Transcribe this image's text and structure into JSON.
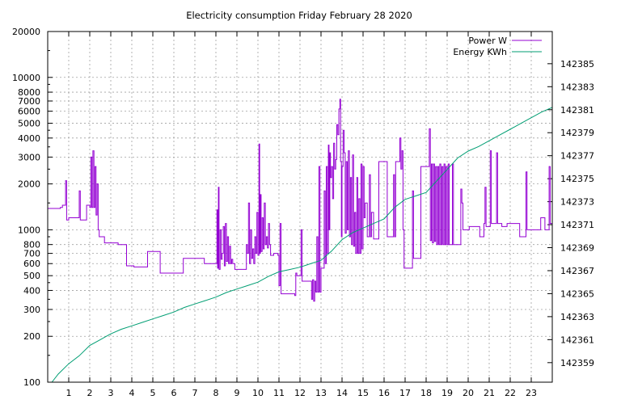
{
  "chart_data": {
    "type": "line",
    "title": "Electricity consumption Friday February 28 2020",
    "xlabel": "",
    "ylabel": "",
    "y2label": "",
    "xlim": [
      0,
      24
    ],
    "ylim": [
      100,
      20000
    ],
    "yscale": "log",
    "y2lim": [
      142357.3,
      142387.8
    ],
    "grid": true,
    "legend_position": "top-right",
    "x_ticks": [
      "1",
      "2",
      "3",
      "4",
      "5",
      "6",
      "7",
      "8",
      "9",
      "10",
      "11",
      "12",
      "13",
      "14",
      "15",
      "16",
      "17",
      "18",
      "19",
      "20",
      "21",
      "22",
      "23"
    ],
    "y_ticks": [
      "20000",
      "10000",
      "8000",
      "7000",
      "6000",
      "5000",
      "4000",
      "3000",
      "2000",
      "1000",
      "800",
      "700",
      "600",
      "500",
      "400",
      "300",
      "200",
      "100"
    ],
    "y2_ticks": [
      "142385",
      "142383",
      "142381",
      "142379",
      "142377",
      "142375",
      "142373",
      "142371",
      "142369",
      "142367",
      "142365",
      "142363",
      "142361",
      "142359"
    ],
    "series": [
      {
        "name": "Power W",
        "axis": "left",
        "color": "#9400d3",
        "points": [
          [
            0,
            1380
          ],
          [
            0.6,
            1400
          ],
          [
            0.7,
            1450
          ],
          [
            0.8,
            1450
          ],
          [
            0.85,
            2100
          ],
          [
            0.9,
            1160
          ],
          [
            1.0,
            1200
          ],
          [
            1.4,
            1200
          ],
          [
            1.5,
            1800
          ],
          [
            1.55,
            1160
          ],
          [
            1.8,
            1160
          ],
          [
            1.85,
            1450
          ],
          [
            2.0,
            1400
          ],
          [
            2.05,
            3000
          ],
          [
            2.1,
            1400
          ],
          [
            2.15,
            3300
          ],
          [
            2.2,
            1400
          ],
          [
            2.25,
            2600
          ],
          [
            2.3,
            1250
          ],
          [
            2.35,
            2000
          ],
          [
            2.4,
            1000
          ],
          [
            2.45,
            900
          ],
          [
            2.7,
            820
          ],
          [
            3.3,
            820
          ],
          [
            3.35,
            800
          ],
          [
            3.7,
            800
          ],
          [
            3.75,
            580
          ],
          [
            4.1,
            570
          ],
          [
            4.7,
            570
          ],
          [
            4.75,
            720
          ],
          [
            5.3,
            720
          ],
          [
            5.35,
            520
          ],
          [
            6.4,
            520
          ],
          [
            6.45,
            650
          ],
          [
            7.4,
            650
          ],
          [
            7.45,
            600
          ],
          [
            8.0,
            600
          ],
          [
            8.05,
            1350
          ],
          [
            8.08,
            560
          ],
          [
            8.12,
            1900
          ],
          [
            8.15,
            550
          ],
          [
            8.2,
            1000
          ],
          [
            8.25,
            640
          ],
          [
            8.3,
            700
          ],
          [
            8.35,
            1050
          ],
          [
            8.4,
            580
          ],
          [
            8.45,
            1100
          ],
          [
            8.5,
            620
          ],
          [
            8.55,
            900
          ],
          [
            8.6,
            600
          ],
          [
            8.65,
            780
          ],
          [
            8.7,
            600
          ],
          [
            8.75,
            640
          ],
          [
            8.8,
            600
          ],
          [
            8.9,
            550
          ],
          [
            9.4,
            550
          ],
          [
            9.45,
            800
          ],
          [
            9.5,
            700
          ],
          [
            9.55,
            1500
          ],
          [
            9.6,
            600
          ],
          [
            9.65,
            1000
          ],
          [
            9.7,
            650
          ],
          [
            9.75,
            750
          ],
          [
            9.8,
            600
          ],
          [
            9.85,
            900
          ],
          [
            9.9,
            700
          ],
          [
            9.95,
            1300
          ],
          [
            10.0,
            680
          ],
          [
            10.05,
            3650
          ],
          [
            10.08,
            700
          ],
          [
            10.12,
            1700
          ],
          [
            10.15,
            720
          ],
          [
            10.2,
            1200
          ],
          [
            10.25,
            750
          ],
          [
            10.3,
            1500
          ],
          [
            10.35,
            800
          ],
          [
            10.4,
            900
          ],
          [
            10.45,
            760
          ],
          [
            10.5,
            1100
          ],
          [
            10.55,
            800
          ],
          [
            10.6,
            680
          ],
          [
            10.7,
            680
          ],
          [
            10.75,
            700
          ],
          [
            10.9,
            700
          ],
          [
            10.95,
            680
          ],
          [
            11.0,
            430
          ],
          [
            11.05,
            1100
          ],
          [
            11.1,
            380
          ],
          [
            11.7,
            380
          ],
          [
            11.75,
            370
          ],
          [
            11.8,
            520
          ],
          [
            11.85,
            500
          ],
          [
            12.0,
            500
          ],
          [
            12.05,
            1000
          ],
          [
            12.1,
            460
          ],
          [
            12.5,
            460
          ],
          [
            12.55,
            350
          ],
          [
            12.6,
            470
          ],
          [
            12.65,
            340
          ],
          [
            12.7,
            460
          ],
          [
            12.75,
            390
          ],
          [
            12.8,
            900
          ],
          [
            12.85,
            390
          ],
          [
            12.9,
            2600
          ],
          [
            12.95,
            390
          ],
          [
            13.0,
            560
          ],
          [
            13.1,
            560
          ],
          [
            13.15,
            1800
          ],
          [
            13.2,
            600
          ],
          [
            13.25,
            2600
          ],
          [
            13.3,
            700
          ],
          [
            13.35,
            3600
          ],
          [
            13.38,
            1000
          ],
          [
            13.42,
            3200
          ],
          [
            13.45,
            2200
          ],
          [
            13.5,
            2600
          ],
          [
            13.55,
            1600
          ],
          [
            13.6,
            3700
          ],
          [
            13.65,
            2500
          ],
          [
            13.7,
            2900
          ],
          [
            13.75,
            4900
          ],
          [
            13.8,
            4200
          ],
          [
            13.85,
            6200
          ],
          [
            13.9,
            7200
          ],
          [
            13.93,
            2800
          ],
          [
            13.97,
            900
          ],
          [
            14.0,
            2600
          ],
          [
            14.05,
            4500
          ],
          [
            14.1,
            3200
          ],
          [
            14.15,
            950
          ],
          [
            14.2,
            2800
          ],
          [
            14.25,
            1000
          ],
          [
            14.3,
            3300
          ],
          [
            14.35,
            900
          ],
          [
            14.4,
            2200
          ],
          [
            14.45,
            800
          ],
          [
            14.5,
            3100
          ],
          [
            14.55,
            780
          ],
          [
            14.6,
            1300
          ],
          [
            14.65,
            700
          ],
          [
            14.7,
            2200
          ],
          [
            14.75,
            700
          ],
          [
            14.8,
            1600
          ],
          [
            14.85,
            700
          ],
          [
            14.9,
            2700
          ],
          [
            14.95,
            750
          ],
          [
            15.0,
            2600
          ],
          [
            15.05,
            1200
          ],
          [
            15.1,
            1500
          ],
          [
            15.2,
            900
          ],
          [
            15.3,
            2300
          ],
          [
            15.35,
            900
          ],
          [
            15.4,
            1300
          ],
          [
            15.5,
            870
          ],
          [
            15.7,
            870
          ],
          [
            15.75,
            2800
          ],
          [
            16.1,
            2800
          ],
          [
            16.15,
            900
          ],
          [
            16.4,
            900
          ],
          [
            16.45,
            2300
          ],
          [
            16.5,
            900
          ],
          [
            16.55,
            2800
          ],
          [
            16.7,
            2800
          ],
          [
            16.75,
            4000
          ],
          [
            16.8,
            2500
          ],
          [
            16.85,
            3300
          ],
          [
            16.9,
            1000
          ],
          [
            16.95,
            560
          ],
          [
            17.3,
            560
          ],
          [
            17.35,
            1800
          ],
          [
            17.4,
            650
          ],
          [
            17.7,
            650
          ],
          [
            17.75,
            2600
          ],
          [
            18.1,
            2600
          ],
          [
            18.15,
            4600
          ],
          [
            18.2,
            850
          ],
          [
            18.25,
            2700
          ],
          [
            18.3,
            820
          ],
          [
            18.35,
            2700
          ],
          [
            18.4,
            840
          ],
          [
            18.45,
            2600
          ],
          [
            18.5,
            800
          ],
          [
            18.55,
            2600
          ],
          [
            18.6,
            800
          ],
          [
            18.65,
            2700
          ],
          [
            18.7,
            800
          ],
          [
            18.75,
            2600
          ],
          [
            18.8,
            800
          ],
          [
            18.85,
            2700
          ],
          [
            18.9,
            800
          ],
          [
            18.95,
            2600
          ],
          [
            19.0,
            800
          ],
          [
            19.05,
            2700
          ],
          [
            19.1,
            800
          ],
          [
            19.2,
            800
          ],
          [
            19.25,
            2700
          ],
          [
            19.3,
            800
          ],
          [
            19.6,
            800
          ],
          [
            19.65,
            1850
          ],
          [
            19.7,
            1500
          ],
          [
            19.75,
            1000
          ],
          [
            20.0,
            1000
          ],
          [
            20.05,
            1050
          ],
          [
            20.5,
            1050
          ],
          [
            20.55,
            900
          ],
          [
            20.7,
            900
          ],
          [
            20.75,
            1100
          ],
          [
            20.8,
            1900
          ],
          [
            20.85,
            1050
          ],
          [
            21.0,
            1050
          ],
          [
            21.05,
            3300
          ],
          [
            21.1,
            1100
          ],
          [
            21.3,
            1100
          ],
          [
            21.35,
            3200
          ],
          [
            21.4,
            1100
          ],
          [
            21.5,
            1100
          ],
          [
            21.6,
            1050
          ],
          [
            21.8,
            1050
          ],
          [
            21.85,
            1100
          ],
          [
            22.4,
            1100
          ],
          [
            22.45,
            900
          ],
          [
            22.7,
            900
          ],
          [
            22.75,
            2400
          ],
          [
            22.8,
            1000
          ],
          [
            23.4,
            1000
          ],
          [
            23.45,
            1200
          ],
          [
            23.6,
            1200
          ],
          [
            23.65,
            1000
          ],
          [
            23.8,
            1000
          ],
          [
            23.85,
            2600
          ],
          [
            23.9,
            1100
          ],
          [
            24.0,
            2500
          ]
        ]
      },
      {
        "name": "Energy KWh",
        "axis": "right",
        "color": "#009e73",
        "points": [
          [
            0.2,
            142357.3
          ],
          [
            0.5,
            142358.0
          ],
          [
            1.0,
            142358.9
          ],
          [
            1.5,
            142359.6
          ],
          [
            2.0,
            142360.5
          ],
          [
            2.5,
            142361.0
          ],
          [
            3.0,
            142361.5
          ],
          [
            3.5,
            142361.9
          ],
          [
            4.0,
            142362.2
          ],
          [
            4.5,
            142362.5
          ],
          [
            5.0,
            142362.8
          ],
          [
            5.5,
            142363.1
          ],
          [
            6.0,
            142363.4
          ],
          [
            6.5,
            142363.8
          ],
          [
            7.0,
            142364.1
          ],
          [
            7.5,
            142364.4
          ],
          [
            8.0,
            142364.7
          ],
          [
            8.5,
            142365.1
          ],
          [
            9.0,
            142365.4
          ],
          [
            9.5,
            142365.7
          ],
          [
            10.0,
            142366.0
          ],
          [
            10.5,
            142366.5
          ],
          [
            11.0,
            142366.9
          ],
          [
            11.5,
            142367.1
          ],
          [
            12.0,
            142367.3
          ],
          [
            12.5,
            142367.6
          ],
          [
            13.0,
            142367.9
          ],
          [
            13.5,
            142368.7
          ],
          [
            14.0,
            142369.7
          ],
          [
            14.5,
            142370.3
          ],
          [
            15.0,
            142370.7
          ],
          [
            15.5,
            142371.1
          ],
          [
            16.0,
            142371.5
          ],
          [
            16.5,
            142372.5
          ],
          [
            17.0,
            142373.2
          ],
          [
            17.5,
            142373.5
          ],
          [
            18.0,
            142373.8
          ],
          [
            18.5,
            142374.8
          ],
          [
            19.0,
            142375.8
          ],
          [
            19.5,
            142376.8
          ],
          [
            20.0,
            142377.4
          ],
          [
            20.5,
            142377.8
          ],
          [
            21.0,
            142378.3
          ],
          [
            21.5,
            142378.8
          ],
          [
            22.0,
            142379.3
          ],
          [
            22.5,
            142379.8
          ],
          [
            23.0,
            142380.3
          ],
          [
            23.5,
            142380.8
          ],
          [
            24.0,
            142381.2
          ]
        ]
      }
    ]
  }
}
